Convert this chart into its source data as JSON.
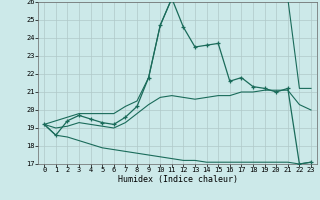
{
  "xlabel": "Humidex (Indice chaleur)",
  "xlim": [
    -0.5,
    23.5
  ],
  "ylim": [
    17,
    26
  ],
  "yticks": [
    17,
    18,
    19,
    20,
    21,
    22,
    23,
    24,
    25,
    26
  ],
  "xticks": [
    0,
    1,
    2,
    3,
    4,
    5,
    6,
    7,
    8,
    9,
    10,
    11,
    12,
    13,
    14,
    15,
    16,
    17,
    18,
    19,
    20,
    21,
    22,
    23
  ],
  "bg_color": "#cce9e9",
  "grid_color": "#b0c8c8",
  "line_color": "#1a6b5a",
  "hours": [
    0,
    1,
    2,
    3,
    4,
    5,
    6,
    7,
    8,
    9,
    10,
    11,
    12,
    13,
    14,
    15,
    16,
    17,
    18,
    19,
    20,
    21,
    22,
    23
  ],
  "main_values": [
    19.2,
    18.6,
    19.4,
    19.7,
    19.5,
    19.3,
    19.2,
    19.6,
    20.2,
    21.8,
    24.7,
    26.2,
    24.6,
    23.5,
    23.6,
    23.7,
    21.6,
    21.8,
    21.3,
    21.2,
    21.0,
    21.2,
    17.0,
    17.1
  ],
  "min_line": [
    19.2,
    18.6,
    18.5,
    18.3,
    18.1,
    17.9,
    17.8,
    17.7,
    17.6,
    17.5,
    17.4,
    17.3,
    17.2,
    17.2,
    17.1,
    17.1,
    17.1,
    17.1,
    17.1,
    17.1,
    17.1,
    17.1,
    17.0,
    17.1
  ],
  "max_line": [
    19.2,
    19.4,
    19.6,
    19.8,
    19.8,
    19.8,
    19.8,
    20.2,
    20.5,
    21.8,
    24.7,
    26.2,
    26.2,
    26.2,
    26.2,
    26.2,
    26.2,
    26.2,
    26.2,
    26.2,
    26.2,
    26.2,
    21.2,
    21.2
  ],
  "avg_line": [
    19.2,
    19.0,
    19.1,
    19.3,
    19.2,
    19.1,
    19.0,
    19.3,
    19.8,
    20.3,
    20.7,
    20.8,
    20.7,
    20.6,
    20.7,
    20.8,
    20.8,
    21.0,
    21.0,
    21.1,
    21.1,
    21.1,
    20.3,
    20.0
  ]
}
